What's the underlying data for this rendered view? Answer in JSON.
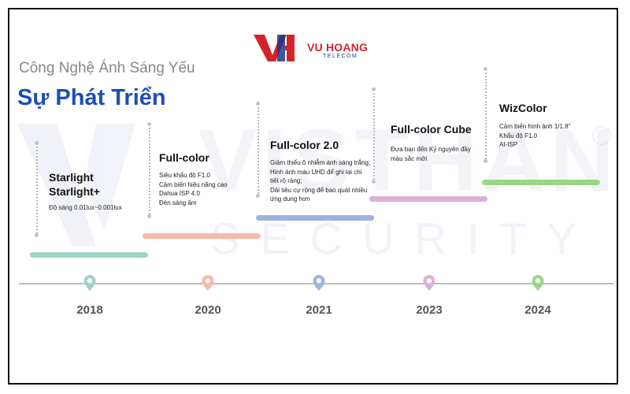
{
  "brand": {
    "name": "VU HOANG",
    "sub": "TELECOM"
  },
  "watermark": {
    "main": "VISTHAN",
    "sub": "SECURITY"
  },
  "header": {
    "subtitle": "Công Nghệ Ánh Sáng Yếu",
    "title": "Sự Phát Triển"
  },
  "milestones": [
    {
      "year": "2018",
      "heading": [
        "Starlight",
        "Starlight+"
      ],
      "desc": [
        "Độ sáng 0.01lux~0.001lux"
      ],
      "color": "#9fd3c7"
    },
    {
      "year": "2020",
      "heading": [
        "Full-color"
      ],
      "desc": [
        "Siêu khẩu độ F1.0",
        "Cảm biến hiệu năng cao",
        "Dahua ISP 4.0",
        "Đèn sáng ấm"
      ],
      "color": "#f8b9a9"
    },
    {
      "year": "2021",
      "heading": [
        "Full-color 2.0"
      ],
      "desc": [
        "Giảm thiểu ô nhiễm ánh sáng trắng;",
        "Hình ảnh màu UHD để ghi lại chi",
        "tiết rõ ràng;",
        "Dải tiêu cự rộng để bao quát nhiều",
        "ứng dụng hơn"
      ],
      "color": "#9cb3e0"
    },
    {
      "year": "2023",
      "heading": [
        "Full-color Cube"
      ],
      "desc": [
        "Đưa bạn đến Kỷ nguyên đầy",
        "màu sắc mới"
      ],
      "color": "#dcb0d6"
    },
    {
      "year": "2024",
      "heading": [
        "WizColor"
      ],
      "desc": [
        "Cảm biến hình ảnh 1/1.8\"",
        "Khẩu độ F1.0",
        "AI-ISP"
      ],
      "color": "#9bd684"
    }
  ],
  "pin_colors": [
    "#9fd3c7",
    "#f8b9a9",
    "#9cb3e0",
    "#dcb0d6",
    "#9bd684"
  ]
}
